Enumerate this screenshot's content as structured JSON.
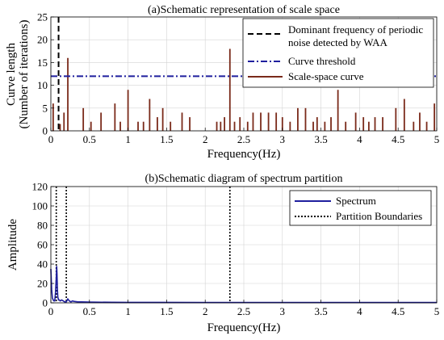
{
  "chart_data": [
    {
      "type": "bar",
      "title": "(a)Schematic representation of scale space",
      "xlabel": "Frequency(Hz)",
      "ylabel_lines": [
        "Curve length",
        "(Number of iterations)"
      ],
      "xlim": [
        0,
        5
      ],
      "ylim": [
        0,
        25
      ],
      "xticks": [
        0,
        0.5,
        1,
        1.5,
        2,
        2.5,
        3,
        3.5,
        4,
        4.5,
        5
      ],
      "xtick_labels": [
        "0",
        "0.5",
        "1",
        "1.5",
        "2",
        "2.5",
        "3",
        "3.5",
        "4",
        "4.5",
        "5"
      ],
      "yticks": [
        0,
        5,
        10,
        15,
        20,
        25
      ],
      "ytick_labels": [
        "0",
        "5",
        "10",
        "15",
        "20",
        "25"
      ],
      "grid": true,
      "legend_position": "top-right",
      "legend": [
        {
          "label_lines": [
            "Dominant frequency of periodic",
            "noise detected by WAA"
          ],
          "style": "dashed",
          "color": "#000000"
        },
        {
          "label_lines": [
            "Curve threshold"
          ],
          "style": "dashdot",
          "color": "#1f1f9e"
        },
        {
          "label_lines": [
            "Scale-space curve"
          ],
          "style": "solid",
          "color": "#7a2a1a"
        }
      ],
      "dominant_frequency": 0.1,
      "threshold": 12,
      "series": [
        {
          "name": "Scale-space curve",
          "x": [
            0.03,
            0.12,
            0.17,
            0.22,
            0.42,
            0.52,
            0.65,
            0.83,
            0.9,
            1.0,
            1.13,
            1.2,
            1.28,
            1.38,
            1.45,
            1.55,
            1.7,
            1.8,
            2.15,
            2.2,
            2.25,
            2.32,
            2.38,
            2.45,
            2.55,
            2.62,
            2.72,
            2.82,
            2.92,
            3.0,
            3.1,
            3.2,
            3.3,
            3.4,
            3.45,
            3.55,
            3.63,
            3.72,
            3.82,
            3.95,
            4.05,
            4.12,
            4.2,
            4.3,
            4.47,
            4.58,
            4.7,
            4.78,
            4.87,
            4.97
          ],
          "values": [
            6,
            1.5,
            4,
            16,
            5,
            2,
            4,
            6,
            2,
            9,
            2,
            2,
            7,
            3,
            5,
            2,
            4,
            3,
            2,
            2,
            3,
            18,
            2,
            3,
            2,
            4,
            4,
            4,
            4,
            3,
            2,
            5,
            5,
            2,
            3,
            2,
            3,
            9,
            2,
            4,
            3,
            2,
            3,
            3,
            5,
            7,
            2,
            4,
            2,
            6
          ]
        }
      ]
    },
    {
      "type": "line",
      "title": "(b)Schematic diagram of spectrum partition",
      "xlabel": "Frequency(Hz)",
      "ylabel": "Amplitude",
      "xlim": [
        0,
        5
      ],
      "ylim": [
        0,
        120
      ],
      "xticks": [
        0,
        0.5,
        1,
        1.5,
        2,
        2.5,
        3,
        3.5,
        4,
        4.5,
        5
      ],
      "xtick_labels": [
        "0",
        "0.5",
        "1",
        "1.5",
        "2",
        "2.5",
        "3",
        "3.5",
        "4",
        "4.5",
        "5"
      ],
      "yticks": [
        0,
        20,
        40,
        60,
        80,
        100,
        120
      ],
      "ytick_labels": [
        "0",
        "20",
        "40",
        "60",
        "80",
        "100",
        "120"
      ],
      "grid": true,
      "legend_position": "top-right",
      "legend": [
        {
          "label_lines": [
            "Spectrum"
          ],
          "style": "solid",
          "color": "#1f1f9e"
        },
        {
          "label_lines": [
            "Partition Boundaries"
          ],
          "style": "dotted",
          "color": "#000000"
        }
      ],
      "partition_boundaries": [
        0.07,
        0.2,
        2.32
      ],
      "series": [
        {
          "name": "Spectrum",
          "x": [
            0,
            0.01,
            0.02,
            0.03,
            0.04,
            0.05,
            0.06,
            0.07,
            0.075,
            0.08,
            0.085,
            0.09,
            0.1,
            0.11,
            0.12,
            0.14,
            0.16,
            0.18,
            0.2,
            0.22,
            0.24,
            0.26,
            0.28,
            0.3,
            0.35,
            0.4,
            0.5,
            0.6,
            0.8,
            1.0,
            1.5,
            2.0,
            2.5,
            3.0,
            3.5,
            4.0,
            4.5,
            5.0
          ],
          "values": [
            35,
            14,
            5,
            3,
            2,
            2,
            10,
            26,
            38,
            30,
            14,
            6,
            3,
            3,
            2,
            3,
            2,
            1,
            1,
            4,
            2,
            1,
            2,
            1.5,
            1,
            1,
            0.8,
            0.7,
            0.6,
            0.5,
            0.5,
            0.4,
            0.4,
            0.4,
            0.3,
            0.3,
            0.3,
            0.3
          ]
        }
      ]
    }
  ]
}
